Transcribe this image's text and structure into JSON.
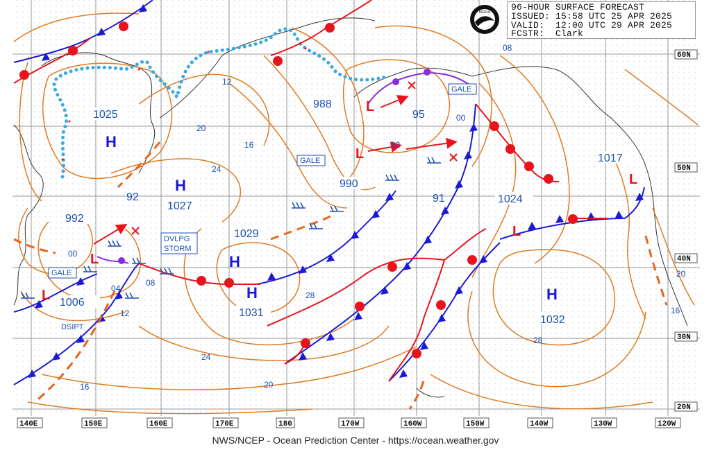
{
  "header": {
    "title": "96-HOUR SURFACE FORECAST",
    "issued": "ISSUED: 15:58 UTC 25 APR 2025",
    "valid": "VALID:  12:00 UTC 29 APR 2025",
    "forecaster": "FCSTR:  Clark",
    "logo_text": "NOAA"
  },
  "footer": {
    "credit": "NWS/NCEP - Ocean Prediction Center - https://ocean.weather.gov"
  },
  "axes": {
    "longitude_labels": [
      "140E",
      "150E",
      "160E",
      "170E",
      "180",
      "170W",
      "160W",
      "150W",
      "140W",
      "130W",
      "120W"
    ],
    "latitude_labels": [
      "60N",
      "50N",
      "40N",
      "30N",
      "20N"
    ]
  },
  "pressure_centers": [
    {
      "type": "H",
      "value": "1025"
    },
    {
      "type": "H",
      "value": "1027"
    },
    {
      "type": "H",
      "value": "1031"
    },
    {
      "type": "H",
      "value": "1032"
    },
    {
      "type": "L",
      "value": "1006"
    },
    {
      "type": "L",
      "value": "992"
    },
    {
      "type": "L",
      "value": "990"
    },
    {
      "type": "L",
      "value": "988"
    },
    {
      "type": "L",
      "value": "1024"
    },
    {
      "type": "L",
      "value": "1017"
    }
  ],
  "isobar_labels": [
    "12",
    "20",
    "16",
    "24",
    "92",
    "00",
    "04",
    "08",
    "12",
    "1029",
    "24",
    "20",
    "16",
    "28",
    "28",
    "20",
    "16",
    "08",
    "00",
    "95",
    "92",
    "91"
  ],
  "warnings": [
    "GALE",
    "GALE",
    "GALE",
    "DVLPG",
    "STORM",
    "DSIPT"
  ],
  "colors": {
    "isobar": "#e07a1f",
    "warm_front": "#e8141c",
    "cold_front": "#1a1ad6",
    "occluded_front": "#8a2be2",
    "ice_edge": "#39a9e6",
    "label_blue": "#1a4fb0",
    "low_red": "#e8141c",
    "grid": "#9a9a9a"
  }
}
